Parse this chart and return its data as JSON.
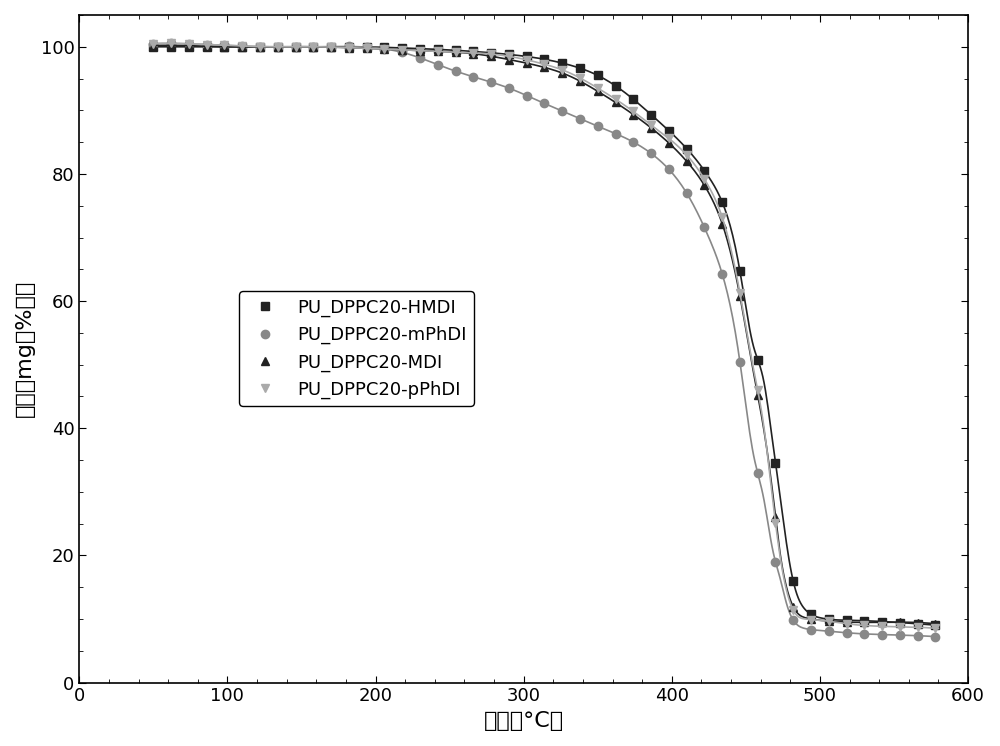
{
  "title": "",
  "xlabel": "温度（°C）",
  "ylabel": "重量（mg（%））",
  "xlim": [
    0,
    600
  ],
  "ylim": [
    0,
    105
  ],
  "xticks": [
    0,
    100,
    200,
    300,
    400,
    500,
    600
  ],
  "yticks": [
    0,
    20,
    40,
    60,
    80,
    100
  ],
  "background_color": "#ffffff",
  "series": [
    {
      "label": "PU_DPPC20-HMDI",
      "color": "#222222",
      "marker": "s",
      "marker_color": "#222222",
      "x": [
        50,
        70,
        100,
        130,
        160,
        190,
        220,
        250,
        270,
        290,
        310,
        330,
        350,
        370,
        390,
        410,
        425,
        435,
        445,
        455,
        462,
        468,
        473,
        478,
        483,
        490,
        500,
        520,
        550,
        580
      ],
      "y": [
        100.0,
        100.0,
        100.0,
        100.0,
        100.0,
        100.0,
        99.8,
        99.5,
        99.2,
        98.8,
        98.2,
        97.2,
        95.5,
        92.5,
        88.5,
        84.0,
        79.5,
        75.0,
        66.0,
        53.0,
        47.5,
        38.0,
        29.5,
        21.0,
        15.0,
        11.5,
        10.2,
        9.8,
        9.5,
        9.0
      ]
    },
    {
      "label": "PU_DPPC20-mPhDI",
      "color": "#888888",
      "marker": "o",
      "marker_color": "#888888",
      "x": [
        50,
        70,
        100,
        130,
        160,
        190,
        220,
        250,
        270,
        290,
        310,
        330,
        350,
        370,
        390,
        410,
        425,
        435,
        445,
        455,
        462,
        468,
        473,
        478,
        483,
        490,
        500,
        520,
        550,
        580
      ],
      "y": [
        100.5,
        100.5,
        100.2,
        100.0,
        100.0,
        100.0,
        99.0,
        96.5,
        95.0,
        93.5,
        91.5,
        89.5,
        87.5,
        85.5,
        82.5,
        77.0,
        70.0,
        63.5,
        52.0,
        36.0,
        29.0,
        21.0,
        16.5,
        12.0,
        9.5,
        8.5,
        8.2,
        7.8,
        7.5,
        7.2
      ]
    },
    {
      "label": "PU_DPPC20-MDI",
      "color": "#222222",
      "marker": "^",
      "marker_color": "#222222",
      "x": [
        50,
        70,
        100,
        130,
        160,
        190,
        220,
        250,
        270,
        290,
        310,
        330,
        350,
        370,
        390,
        410,
        425,
        435,
        445,
        455,
        462,
        468,
        473,
        478,
        483,
        490,
        500,
        520,
        550,
        580
      ],
      "y": [
        100.2,
        100.2,
        100.0,
        100.0,
        100.0,
        99.8,
        99.5,
        99.2,
        98.8,
        98.0,
        97.0,
        95.5,
        93.0,
        90.0,
        86.5,
        82.0,
        77.0,
        71.5,
        62.0,
        49.0,
        40.0,
        30.0,
        20.5,
        14.5,
        11.5,
        10.2,
        9.8,
        9.5,
        9.5,
        9.2
      ]
    },
    {
      "label": "PU_DPPC20-pPhDI",
      "color": "#aaaaaa",
      "marker": "v",
      "marker_color": "#aaaaaa",
      "x": [
        50,
        70,
        100,
        130,
        160,
        190,
        220,
        250,
        270,
        290,
        310,
        330,
        350,
        370,
        390,
        410,
        425,
        435,
        445,
        455,
        462,
        468,
        473,
        478,
        483,
        490,
        500,
        520,
        550,
        580
      ],
      "y": [
        100.5,
        100.5,
        100.2,
        100.0,
        100.0,
        99.8,
        99.5,
        99.2,
        99.0,
        98.5,
        97.5,
        96.0,
        93.5,
        90.5,
        87.0,
        83.0,
        78.0,
        72.5,
        62.5,
        49.5,
        40.5,
        29.0,
        20.0,
        14.0,
        11.0,
        10.0,
        9.8,
        9.2,
        8.8,
        8.5
      ]
    }
  ],
  "marker_x_positions": {
    "PU_DPPC20-HMDI": [
      50,
      100,
      150,
      200,
      250,
      300,
      350,
      400,
      430,
      455,
      462,
      468,
      475,
      480,
      490,
      500,
      520,
      550,
      580
    ],
    "PU_DPPC20-mPhDI": [
      50,
      100,
      150,
      200,
      250,
      300,
      350,
      400,
      430,
      455,
      462,
      468,
      475,
      480,
      490,
      500,
      520,
      550,
      580
    ],
    "PU_DPPC20-MDI": [
      50,
      100,
      150,
      200,
      250,
      300,
      350,
      400,
      430,
      455,
      462,
      468,
      475,
      480,
      490,
      500,
      520,
      550,
      580
    ],
    "PU_DPPC20-pPhDI": [
      50,
      100,
      150,
      200,
      250,
      300,
      350,
      400,
      430,
      455,
      462,
      468,
      475,
      480,
      490,
      500,
      520,
      550,
      580
    ]
  },
  "linewidth": 1.2,
  "markersize": 6,
  "fontsize_label": 16,
  "fontsize_tick": 13,
  "fontsize_legend": 13
}
